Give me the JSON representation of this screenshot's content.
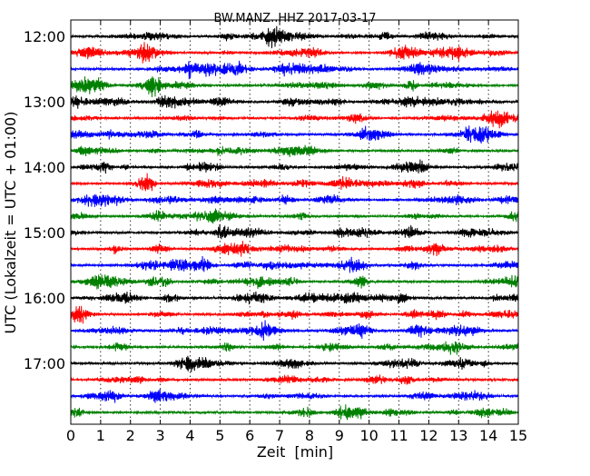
{
  "chart_data": {
    "type": "line",
    "title": "BW.MANZ..HHZ 2017-03-17",
    "xlabel": "Zeit  [min]",
    "ylabel": "UTC (Lokalzeit = UTC + 01:00)",
    "xlim": [
      0,
      15
    ],
    "x_ticks": [
      "0",
      "1",
      "2",
      "3",
      "4",
      "5",
      "6",
      "7",
      "8",
      "9",
      "10",
      "11",
      "12",
      "13",
      "14",
      "15"
    ],
    "y_tick_labels": [
      "12:00",
      "13:00",
      "14:00",
      "15:00",
      "16:00",
      "17:00"
    ],
    "grid": "vertical-dotted",
    "trace_interval_min": 15,
    "series_colors": [
      "#000000",
      "#ff0000",
      "#0000ff",
      "#008000"
    ],
    "series": [
      {
        "start": "12:00"
      },
      {
        "start": "12:15"
      },
      {
        "start": "12:30"
      },
      {
        "start": "12:45"
      },
      {
        "start": "13:00"
      },
      {
        "start": "13:15"
      },
      {
        "start": "13:30"
      },
      {
        "start": "13:45"
      },
      {
        "start": "14:00"
      },
      {
        "start": "14:15"
      },
      {
        "start": "14:30"
      },
      {
        "start": "14:45"
      },
      {
        "start": "15:00"
      },
      {
        "start": "15:15"
      },
      {
        "start": "15:30"
      },
      {
        "start": "15:45"
      },
      {
        "start": "16:00"
      },
      {
        "start": "16:15"
      },
      {
        "start": "16:30"
      },
      {
        "start": "16:45"
      },
      {
        "start": "17:00"
      },
      {
        "start": "17:15"
      },
      {
        "start": "17:30"
      },
      {
        "start": "17:45"
      }
    ]
  }
}
